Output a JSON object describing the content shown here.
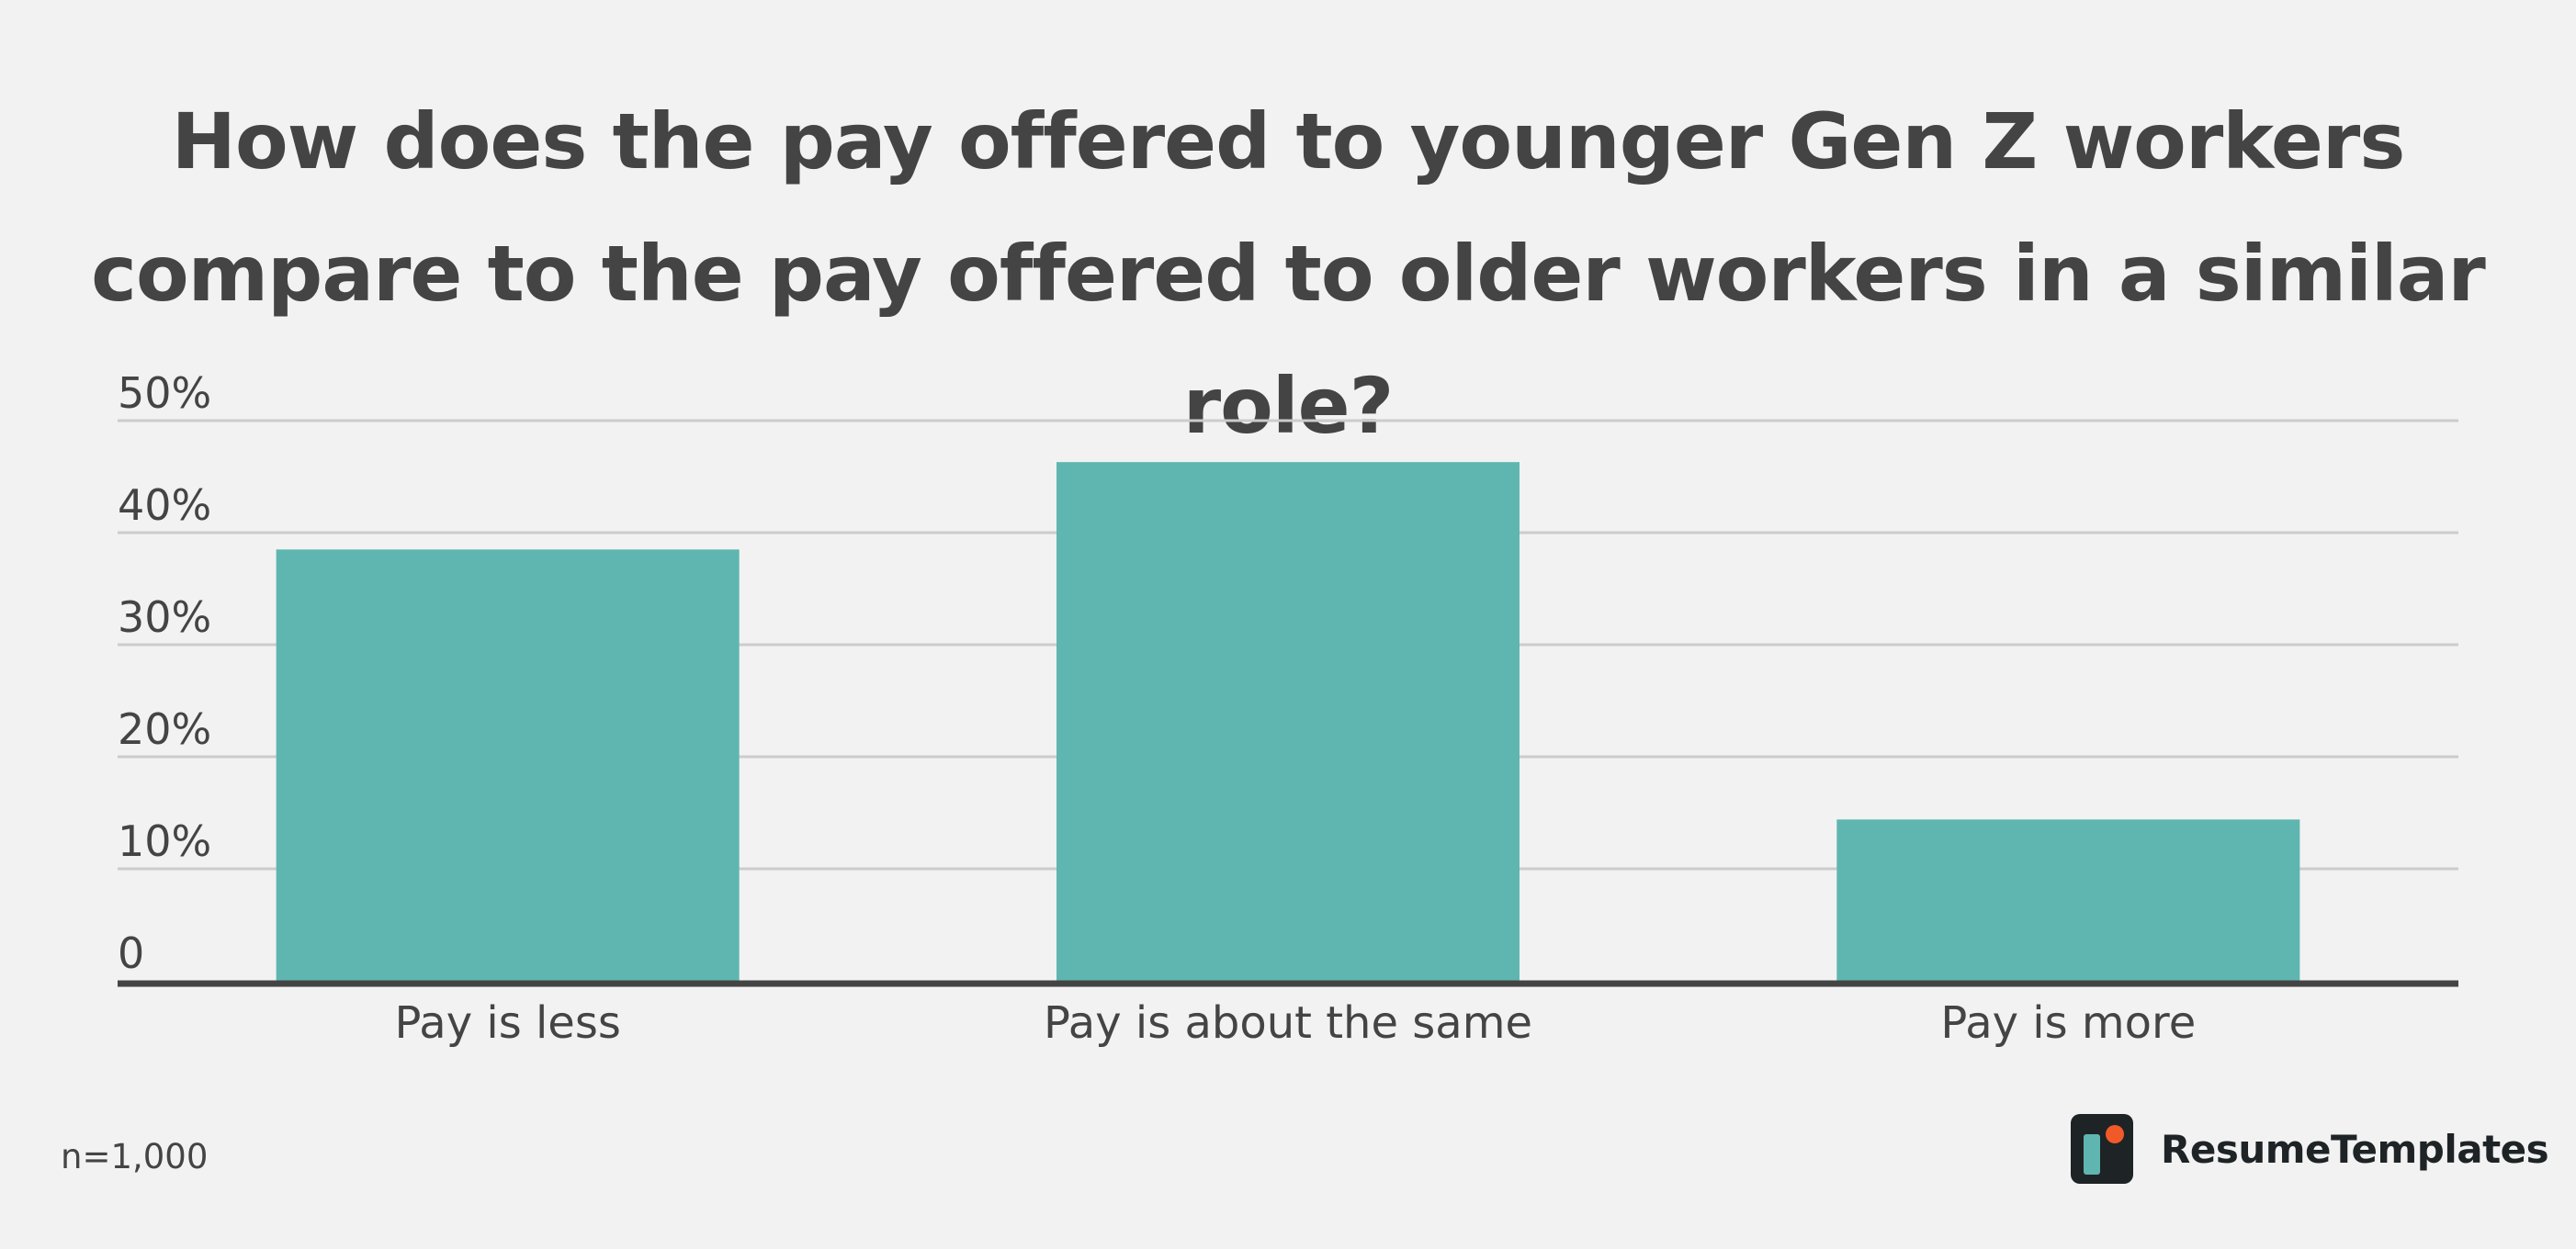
{
  "chart_data": {
    "type": "bar",
    "title": "How does the pay offered to younger Gen Z workers compare to the pay offered to older workers in a similar role?",
    "categories": [
      "Pay is less",
      "Pay is about the same",
      "Pay is more"
    ],
    "values": [
      38.5,
      46.3,
      14.4
    ],
    "ylim": [
      0,
      50
    ],
    "yticks": [
      0,
      10,
      20,
      30,
      40,
      50
    ],
    "ytick_labels": [
      "0",
      "10%",
      "20%",
      "30%",
      "40%",
      "50%"
    ],
    "xlabel": "",
    "ylabel": "",
    "grid": true,
    "bar_color": "#5fb6b0",
    "grid_color": "#cccccc",
    "axis_color": "#444444"
  },
  "footer": {
    "sample_note": "n=1,000",
    "brand_name": "ResumeTemplates"
  },
  "colors": {
    "background": "#f2f2f2",
    "text": "#444444",
    "logo_dark": "#1e2326",
    "logo_teal": "#5fb6b0",
    "logo_orange": "#f05a28"
  }
}
